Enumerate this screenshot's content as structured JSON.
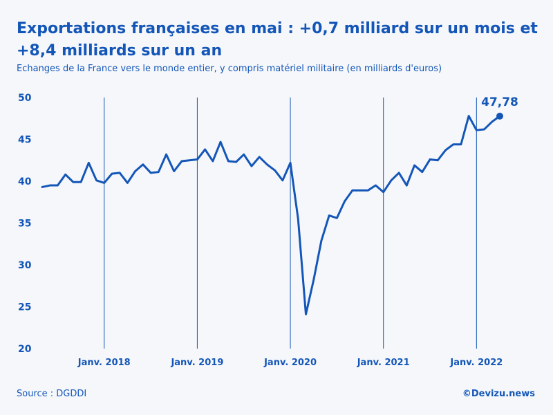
{
  "chart_data": {
    "type": "line",
    "title": "Exportations françaises en mai : +0,7 milliard sur un mois et +8,4 milliards sur un an",
    "subtitle": "Echanges de la France vers le monde entier, y compris matériel militaire (en milliards d'euros)",
    "ylim": [
      20,
      50
    ],
    "yticks": [
      "20",
      "25",
      "30",
      "35",
      "40",
      "45",
      "50"
    ],
    "xticks": [
      {
        "label": "Janv. 2018",
        "index": 8
      },
      {
        "label": "Janv. 2019",
        "index": 20
      },
      {
        "label": "Janv. 2020",
        "index": 32
      },
      {
        "label": "Janv. 2021",
        "index": 44
      },
      {
        "label": "Janv. 2022",
        "index": 56
      }
    ],
    "series": [
      {
        "name": "Exportations",
        "color": "#1456b8",
        "values": [
          39.3,
          39.5,
          39.5,
          40.8,
          39.9,
          39.9,
          42.2,
          40.1,
          39.8,
          40.9,
          41.0,
          39.8,
          41.2,
          42.0,
          41.0,
          41.1,
          43.2,
          41.2,
          42.4,
          42.5,
          42.6,
          43.8,
          42.4,
          44.7,
          42.4,
          42.3,
          43.2,
          41.8,
          42.9,
          42.0,
          41.3,
          40.1,
          42.2,
          35.5,
          24.1,
          28.2,
          32.9,
          35.9,
          35.6,
          37.6,
          38.9,
          38.9,
          38.9,
          39.5,
          38.7,
          40.1,
          41.0,
          39.5,
          41.9,
          41.1,
          42.6,
          42.5,
          43.7,
          44.4,
          44.4,
          47.8,
          46.1,
          46.2,
          47.1,
          47.78
        ]
      }
    ],
    "annotation": {
      "label": "47,78",
      "value": 47.78
    }
  },
  "footer": {
    "source": "Source : DGDDI",
    "brand": "©Devizu.news"
  },
  "colors": {
    "accent": "#1456b8",
    "background": "#f5f7fa"
  }
}
